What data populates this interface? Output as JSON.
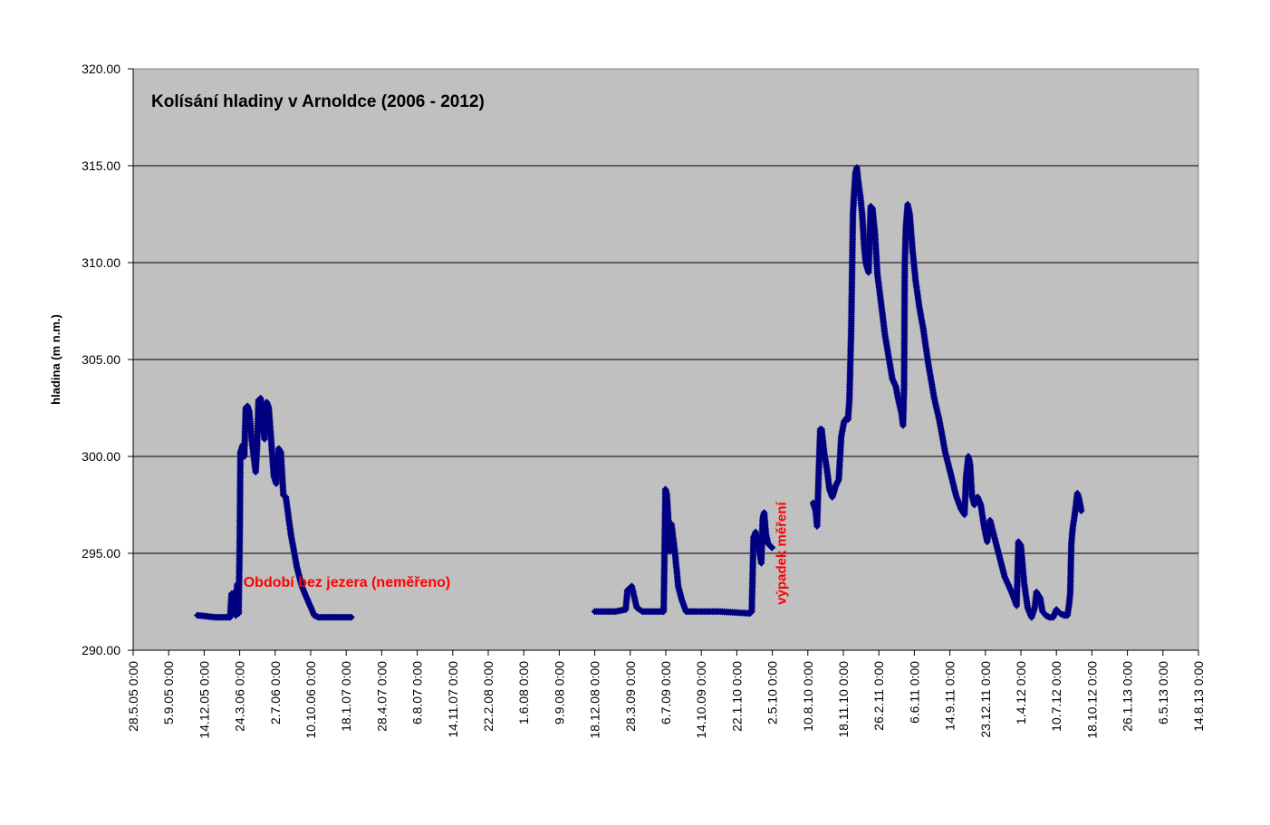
{
  "chart_data": {
    "type": "line",
    "title": "Kolísání hladiny v Arnoldce (2006 - 2012)",
    "xlabel": "",
    "ylabel": "hladina (m n.m.)",
    "ylim": [
      290,
      320
    ],
    "yticks": [
      "290.00",
      "295.00",
      "300.00",
      "305.00",
      "310.00",
      "315.00",
      "320.00"
    ],
    "xlim": [
      "2005-05-28",
      "2013-08-14"
    ],
    "xtick_labels": [
      "28.5.05 0:00",
      "5.9.05 0:00",
      "14.12.05 0:00",
      "24.3.06 0:00",
      "2.7.06 0:00",
      "10.10.06 0:00",
      "18.1.07 0:00",
      "28.4.07 0:00",
      "6.8.07 0:00",
      "14.11.07 0:00",
      "22.2.08 0:00",
      "1.6.08 0:00",
      "9.9.08 0:00",
      "18.12.08 0:00",
      "28.3.09 0:00",
      "6.7.09 0:00",
      "14.10.09 0:00",
      "22.1.10 0:00",
      "2.5.10 0:00",
      "10.8.10 0:00",
      "18.11.10 0:00",
      "26.2.11 0:00",
      "6.6.11 0:00",
      "14.9.11 0:00",
      "23.12.11 0:00",
      "1.4.12 0:00",
      "10.7.12 0:00",
      "18.10.12 0:00",
      "26.1.13 0:00",
      "6.5.13 0:00",
      "14.8.13 0:00"
    ],
    "grid": true,
    "legend": "none",
    "background": "#c0c0c0",
    "series_color": "#000080",
    "annotation_color": "#ff0000",
    "annotations": [
      {
        "text": "Období bez jezera (neměřeno)",
        "x": "2007-01-20",
        "y": 293.5
      },
      {
        "text": "výpadek měření",
        "x": "2010-05-25",
        "y": 295.0,
        "rotated": true
      }
    ],
    "series": [
      {
        "segments": [
          [
            [
              "2005-11-25",
              291.8
            ],
            [
              "2006-01-15",
              291.7
            ],
            [
              "2006-02-25",
              291.7
            ],
            [
              "2006-03-01",
              292.9
            ],
            [
              "2006-03-06",
              292.0
            ],
            [
              "2006-03-10",
              293.0
            ],
            [
              "2006-03-13",
              291.8
            ],
            [
              "2006-03-17",
              293.4
            ],
            [
              "2006-03-21",
              291.9
            ],
            [
              "2006-03-24",
              295.5
            ],
            [
              "2006-03-26",
              300.2
            ],
            [
              "2006-04-02",
              300.6
            ],
            [
              "2006-04-06",
              300.0
            ],
            [
              "2006-04-10",
              302.5
            ],
            [
              "2006-04-15",
              302.6
            ],
            [
              "2006-04-20",
              302.3
            ],
            [
              "2006-04-26",
              301.0
            ],
            [
              "2006-05-01",
              300.2
            ],
            [
              "2006-05-08",
              299.2
            ],
            [
              "2006-05-12",
              300.5
            ],
            [
              "2006-05-16",
              302.9
            ],
            [
              "2006-05-22",
              303.0
            ],
            [
              "2006-05-28",
              301.5
            ],
            [
              "2006-06-02",
              300.9
            ],
            [
              "2006-06-08",
              302.8
            ],
            [
              "2006-06-14",
              302.5
            ],
            [
              "2006-06-20",
              301.0
            ],
            [
              "2006-06-28",
              299.0
            ],
            [
              "2006-07-05",
              298.6
            ],
            [
              "2006-07-12",
              300.4
            ],
            [
              "2006-07-18",
              300.2
            ],
            [
              "2006-07-25",
              298.0
            ],
            [
              "2006-08-01",
              297.9
            ],
            [
              "2006-08-15",
              296.0
            ],
            [
              "2006-09-01",
              294.3
            ],
            [
              "2006-09-15",
              293.3
            ],
            [
              "2006-10-01",
              292.6
            ],
            [
              "2006-10-20",
              291.8
            ],
            [
              "2006-11-01",
              291.7
            ],
            [
              "2007-02-01",
              291.7
            ]
          ],
          [
            [
              "2008-12-18",
              292.0
            ],
            [
              "2009-02-15",
              292.0
            ],
            [
              "2009-03-15",
              292.1
            ],
            [
              "2009-03-20",
              293.1
            ],
            [
              "2009-04-01",
              293.3
            ],
            [
              "2009-04-15",
              292.2
            ],
            [
              "2009-05-01",
              292.0
            ],
            [
              "2009-06-10",
              292.0
            ],
            [
              "2009-06-30",
              292.0
            ],
            [
              "2009-07-05",
              298.3
            ],
            [
              "2009-07-09",
              298.0
            ],
            [
              "2009-07-14",
              296.5
            ],
            [
              "2009-07-18",
              295.1
            ],
            [
              "2009-07-22",
              296.5
            ],
            [
              "2009-08-01",
              295.0
            ],
            [
              "2009-08-10",
              293.3
            ],
            [
              "2009-08-20",
              292.6
            ],
            [
              "2009-09-01",
              292.0
            ],
            [
              "2009-10-01",
              292.0
            ],
            [
              "2009-12-01",
              292.0
            ],
            [
              "2010-02-28",
              291.9
            ],
            [
              "2010-03-05",
              292.0
            ],
            [
              "2010-03-10",
              295.8
            ],
            [
              "2010-03-16",
              296.1
            ],
            [
              "2010-03-22",
              295.6
            ],
            [
              "2010-04-01",
              294.5
            ],
            [
              "2010-04-05",
              296.8
            ],
            [
              "2010-04-09",
              297.1
            ],
            [
              "2010-04-14",
              296.0
            ],
            [
              "2010-04-20",
              295.5
            ],
            [
              "2010-05-01",
              295.3
            ]
          ],
          [
            [
              "2010-08-25",
              297.6
            ],
            [
              "2010-09-01",
              297.2
            ],
            [
              "2010-09-05",
              296.4
            ],
            [
              "2010-09-10",
              299.4
            ],
            [
              "2010-09-14",
              301.4
            ],
            [
              "2010-09-18",
              301.4
            ],
            [
              "2010-09-25",
              300.2
            ],
            [
              "2010-10-03",
              299.3
            ],
            [
              "2010-10-10",
              298.3
            ],
            [
              "2010-10-18",
              297.9
            ],
            [
              "2010-10-28",
              298.5
            ],
            [
              "2010-11-05",
              298.8
            ],
            [
              "2010-11-12",
              301.0
            ],
            [
              "2010-11-20",
              301.8
            ],
            [
              "2010-11-28",
              302.0
            ],
            [
              "2010-12-01",
              301.9
            ],
            [
              "2010-12-05",
              302.9
            ],
            [
              "2010-12-10",
              306.5
            ],
            [
              "2010-12-15",
              312.5
            ],
            [
              "2010-12-18",
              313.5
            ],
            [
              "2010-12-22",
              314.6
            ],
            [
              "2010-12-26",
              314.9
            ],
            [
              "2010-12-30",
              314.2
            ],
            [
              "2011-01-05",
              313.4
            ],
            [
              "2011-01-10",
              312.5
            ],
            [
              "2011-01-15",
              311.0
            ],
            [
              "2011-01-20",
              310.0
            ],
            [
              "2011-01-28",
              309.5
            ],
            [
              "2011-02-03",
              312.9
            ],
            [
              "2011-02-08",
              312.8
            ],
            [
              "2011-02-15",
              311.5
            ],
            [
              "2011-02-22",
              309.4
            ],
            [
              "2011-03-05",
              307.8
            ],
            [
              "2011-03-15",
              306.3
            ],
            [
              "2011-03-25",
              305.2
            ],
            [
              "2011-04-05",
              304.0
            ],
            [
              "2011-04-15",
              303.6
            ],
            [
              "2011-04-22",
              302.9
            ],
            [
              "2011-05-01",
              302.2
            ],
            [
              "2011-05-05",
              301.6
            ],
            [
              "2011-05-08",
              303.5
            ],
            [
              "2011-05-10",
              309.8
            ],
            [
              "2011-05-13",
              311.8
            ],
            [
              "2011-05-18",
              313.0
            ],
            [
              "2011-05-24",
              312.5
            ],
            [
              "2011-06-01",
              310.6
            ],
            [
              "2011-06-10",
              309.0
            ],
            [
              "2011-06-20",
              307.7
            ],
            [
              "2011-07-01",
              306.6
            ],
            [
              "2011-07-15",
              304.8
            ],
            [
              "2011-08-01",
              303.0
            ],
            [
              "2011-08-15",
              301.9
            ],
            [
              "2011-09-01",
              300.2
            ],
            [
              "2011-09-15",
              299.2
            ],
            [
              "2011-10-01",
              298.0
            ],
            [
              "2011-10-15",
              297.3
            ],
            [
              "2011-10-25",
              297.0
            ],
            [
              "2011-10-30",
              299.0
            ],
            [
              "2011-11-05",
              300.0
            ],
            [
              "2011-11-10",
              299.6
            ],
            [
              "2011-11-15",
              298.0
            ],
            [
              "2011-11-22",
              297.5
            ],
            [
              "2011-12-01",
              297.9
            ],
            [
              "2011-12-10",
              297.5
            ],
            [
              "2011-12-20",
              296.3
            ],
            [
              "2011-12-28",
              295.6
            ],
            [
              "2012-01-05",
              296.7
            ],
            [
              "2012-01-15",
              296.0
            ],
            [
              "2012-02-01",
              294.8
            ],
            [
              "2012-02-15",
              293.8
            ],
            [
              "2012-03-01",
              293.2
            ],
            [
              "2012-03-10",
              292.8
            ],
            [
              "2012-03-20",
              292.3
            ],
            [
              "2012-03-25",
              295.6
            ],
            [
              "2012-04-01",
              295.4
            ],
            [
              "2012-04-10",
              293.5
            ],
            [
              "2012-04-20",
              292.2
            ],
            [
              "2012-05-01",
              291.7
            ],
            [
              "2012-05-10",
              292.2
            ],
            [
              "2012-05-15",
              293.0
            ],
            [
              "2012-05-25",
              292.7
            ],
            [
              "2012-06-01",
              292.0
            ],
            [
              "2012-06-10",
              291.8
            ],
            [
              "2012-06-20",
              291.7
            ],
            [
              "2012-07-01",
              291.7
            ],
            [
              "2012-07-10",
              292.1
            ],
            [
              "2012-07-20",
              291.9
            ],
            [
              "2012-08-01",
              291.8
            ],
            [
              "2012-08-10",
              291.8
            ],
            [
              "2012-08-15",
              292.4
            ],
            [
              "2012-08-18",
              293.0
            ],
            [
              "2012-08-21",
              295.5
            ],
            [
              "2012-08-25",
              296.3
            ],
            [
              "2012-09-01",
              297.2
            ],
            [
              "2012-09-07",
              298.1
            ],
            [
              "2012-09-12",
              297.8
            ],
            [
              "2012-09-18",
              297.2
            ]
          ]
        ]
      }
    ]
  }
}
